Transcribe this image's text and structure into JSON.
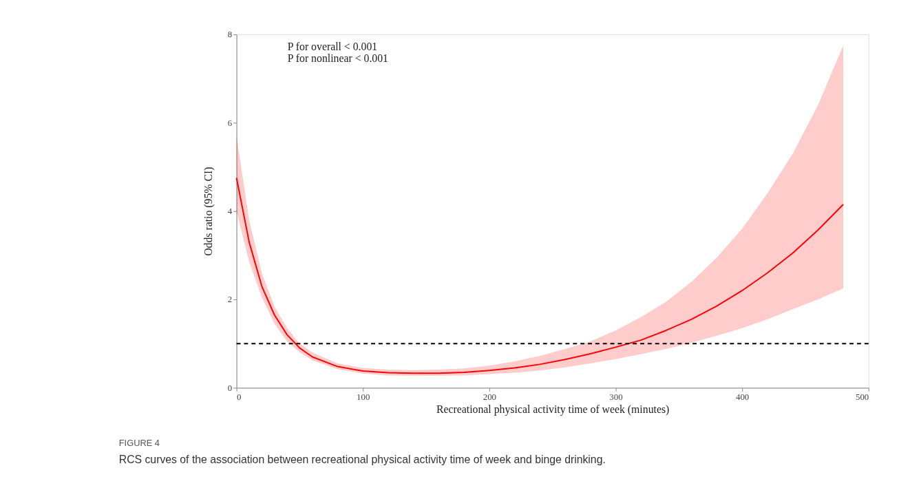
{
  "chart_data": {
    "type": "line",
    "xlabel": "Recreational physical activity time of week (minutes)",
    "ylabel": "Odds ratio (95% CI)",
    "xlim": [
      0,
      500
    ],
    "xticks": [
      0,
      100,
      200,
      300,
      400,
      500
    ],
    "ylim": [
      0,
      8
    ],
    "yticks": [
      0,
      2,
      4,
      6,
      8
    ],
    "grid": false,
    "line_style": "solid",
    "series": [
      {
        "color": "#ff0000",
        "x": [
          0,
          10,
          20,
          30,
          40,
          50,
          60,
          80,
          100,
          120,
          140,
          160,
          180,
          200,
          220,
          240,
          260,
          280,
          300,
          320,
          340,
          360,
          380,
          400,
          420,
          440,
          460,
          480
        ],
        "values": [
          4.75,
          3.3,
          2.3,
          1.65,
          1.2,
          0.9,
          0.7,
          0.48,
          0.38,
          0.34,
          0.33,
          0.33,
          0.35,
          0.39,
          0.45,
          0.53,
          0.64,
          0.77,
          0.92,
          1.08,
          1.3,
          1.55,
          1.85,
          2.2,
          2.6,
          3.05,
          3.57,
          4.15
        ],
        "upper": [
          5.7,
          3.8,
          2.6,
          1.85,
          1.35,
          1.0,
          0.8,
          0.55,
          0.45,
          0.41,
          0.4,
          0.41,
          0.44,
          0.5,
          0.6,
          0.72,
          0.88,
          1.05,
          1.3,
          1.6,
          1.95,
          2.4,
          2.95,
          3.6,
          4.4,
          5.3,
          6.4,
          7.75
        ],
        "lower": [
          4.0,
          2.85,
          2.05,
          1.45,
          1.05,
          0.8,
          0.62,
          0.42,
          0.32,
          0.28,
          0.27,
          0.27,
          0.28,
          0.31,
          0.34,
          0.39,
          0.46,
          0.55,
          0.65,
          0.76,
          0.88,
          1.02,
          1.18,
          1.35,
          1.55,
          1.78,
          2.0,
          2.25
        ]
      }
    ],
    "ref_lines": [
      {
        "axis": "y",
        "value": 1,
        "color": "#000000",
        "line_style": "dashed"
      }
    ],
    "annotations": [
      "P for overall < 0.001",
      "P for nonlinear < 0.001",
      "FIGURE 4",
      "RCS curves of the association between recreational physical activity time of week and binge drinking."
    ]
  }
}
